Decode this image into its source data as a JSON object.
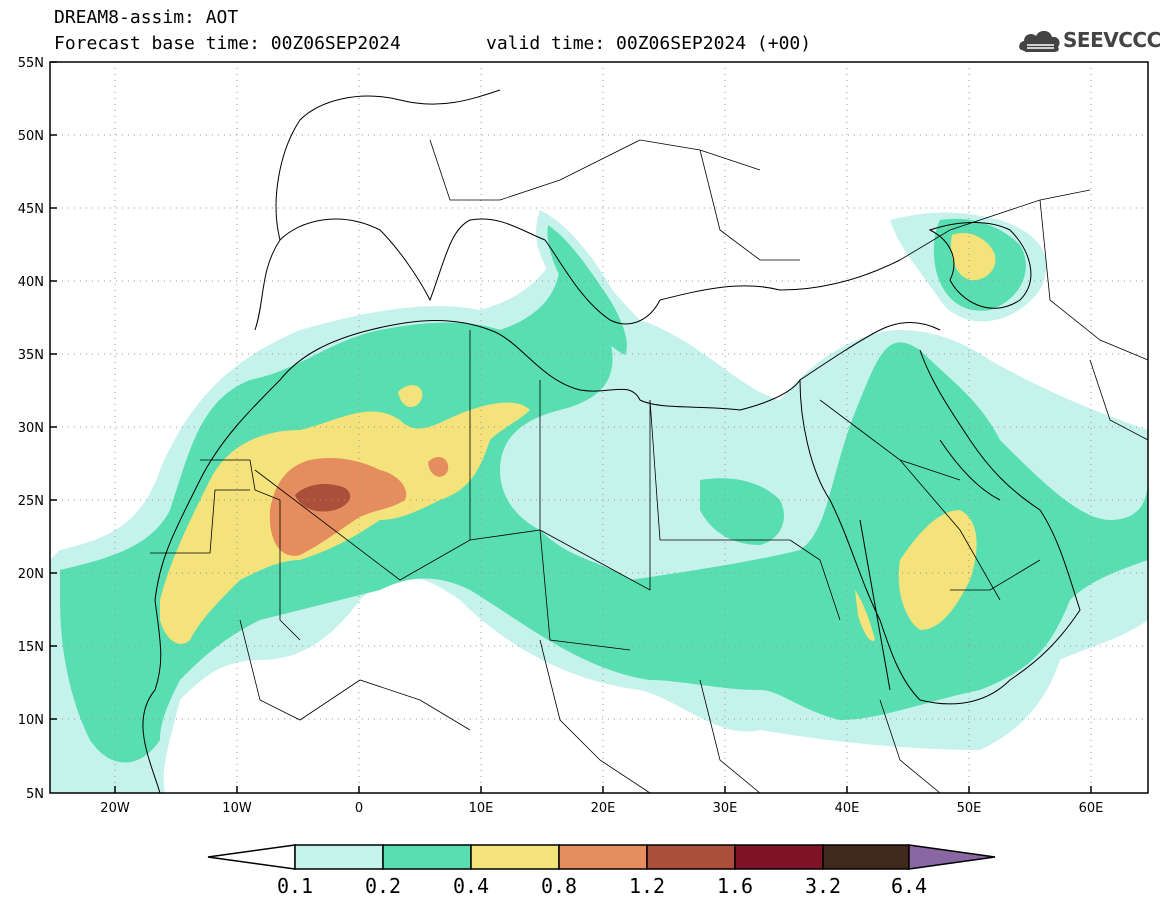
{
  "header": {
    "line1": "DREAM8-assim: AOT",
    "line2": "Forecast base time: 00Z06SEP2024",
    "valid": "valid time: 00Z06SEP2024 (+00)",
    "logo_text": "SEEVCCC"
  },
  "axes": {
    "lat_labels": [
      "55N",
      "50N",
      "45N",
      "40N",
      "35N",
      "30N",
      "25N",
      "20N",
      "15N",
      "10N",
      "5N"
    ],
    "lon_labels": [
      "20W",
      "10W",
      "0",
      "10E",
      "20E",
      "30E",
      "40E",
      "50E",
      "60E"
    ]
  },
  "colorbar": {
    "labels": [
      "0.1",
      "0.2",
      "0.4",
      "0.8",
      "1.2",
      "1.6",
      "3.2",
      "6.4"
    ],
    "colors": [
      "#ffffff",
      "#c6f2ec",
      "#58deb0",
      "#f4e27a",
      "#e58d5e",
      "#ab4e3a",
      "#7f1327",
      "#40291a",
      "#8a66a2"
    ]
  },
  "palette": {
    "c1": "#c6f2ec",
    "c2": "#58deb0",
    "c3": "#f4e27a",
    "c4": "#e58d5e",
    "c5": "#ab4e3a"
  }
}
